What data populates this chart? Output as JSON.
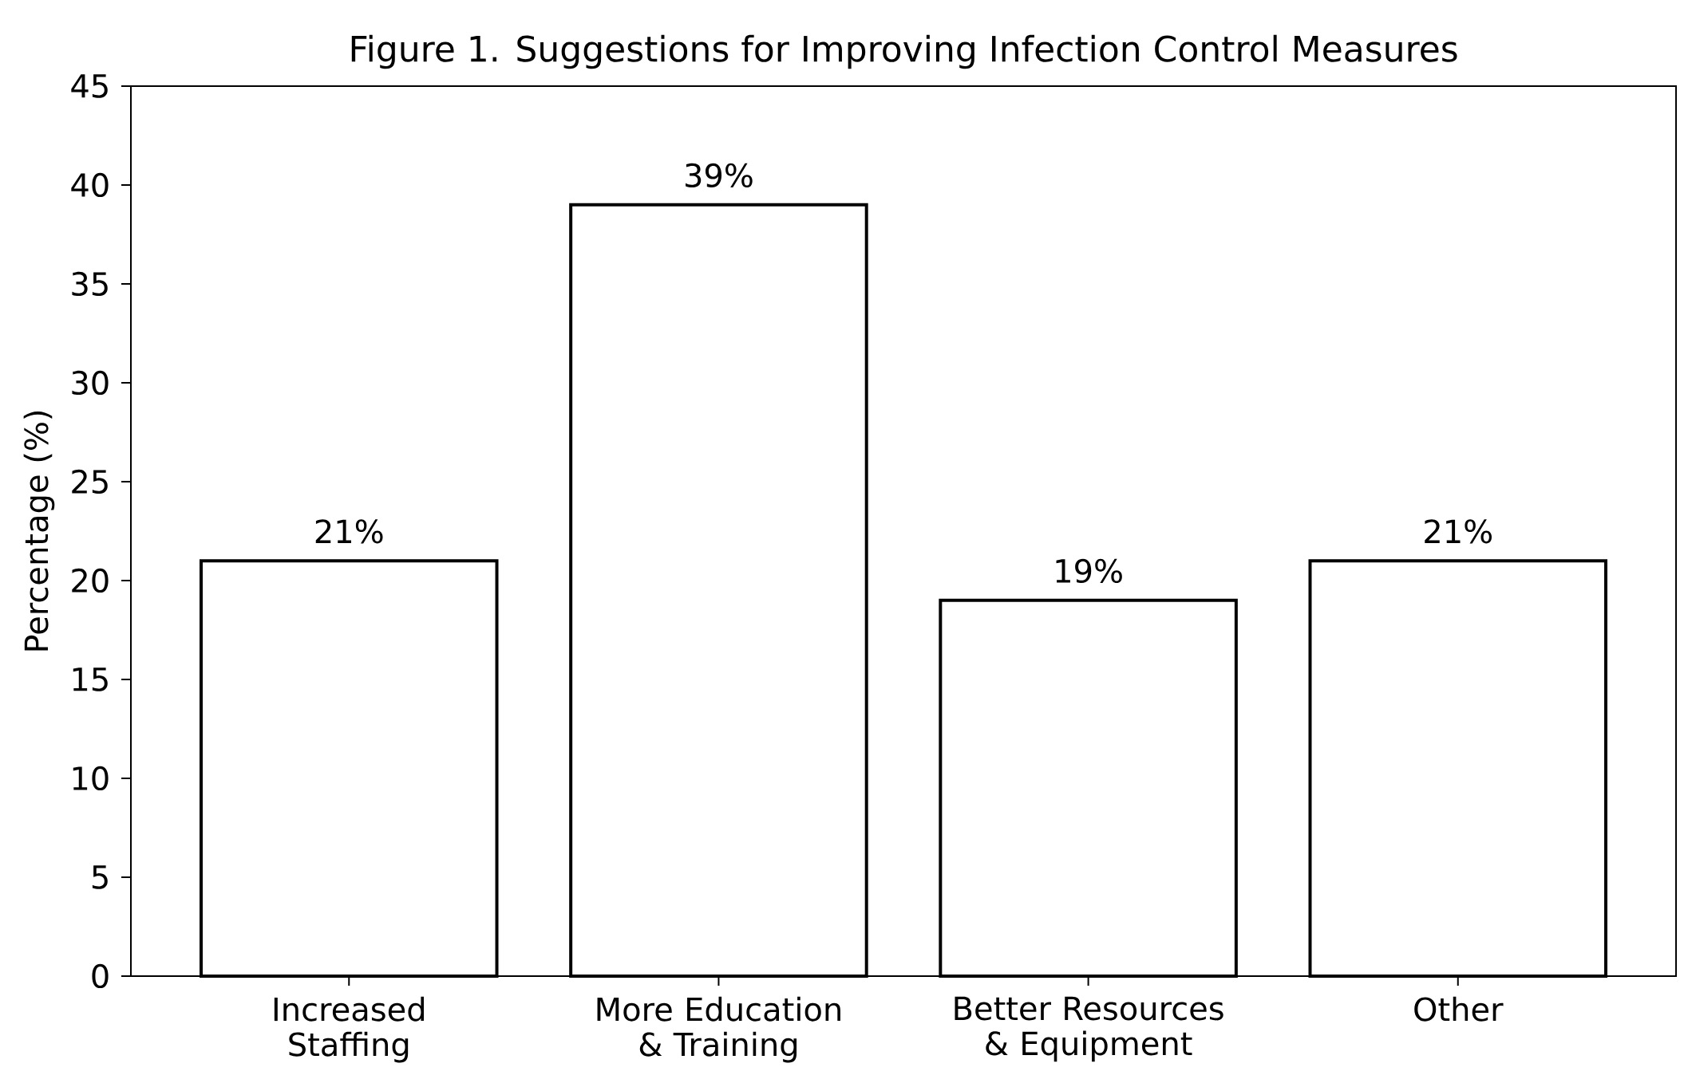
{
  "chart_data": {
    "type": "bar",
    "title": "Figure 1. Suggestions for Improving Infection Control Measures",
    "ylabel": "Percentage (%)",
    "categories": [
      "Increased Staffing",
      "More Education & Training",
      "Better Resources & Equipment",
      "Other"
    ],
    "values": [
      21,
      39,
      19,
      21
    ],
    "value_labels": [
      "21%",
      "39%",
      "19%",
      "21%"
    ],
    "color": "#ffffff",
    "ylim": [
      0,
      45
    ],
    "yticks": [
      0,
      5,
      10,
      15,
      20,
      25,
      30,
      35,
      40,
      45
    ],
    "grid": false
  }
}
